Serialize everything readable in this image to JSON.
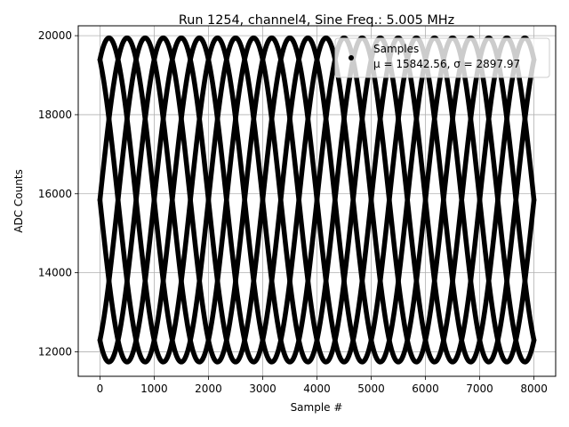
{
  "chart_data": {
    "type": "scatter",
    "title": "Run 1254, channel4, Sine Freq.: 5.005 MHz",
    "xlabel": "Sample #",
    "ylabel": "ADC Counts",
    "xlim": [
      -400,
      8400
    ],
    "ylim": [
      11380,
      20250
    ],
    "xticks": [
      0,
      1000,
      2000,
      3000,
      4000,
      5000,
      6000,
      7000,
      8000
    ],
    "xtick_labels": [
      "0",
      "1000",
      "2000",
      "3000",
      "4000",
      "5000",
      "6000",
      "7000",
      "8000"
    ],
    "yticks": [
      12000,
      14000,
      16000,
      18000,
      20000
    ],
    "ytick_labels": [
      "12000",
      "14000",
      "16000",
      "18000",
      "20000"
    ],
    "grid": true,
    "legend": {
      "placement": "upper-right",
      "entries": [
        {
          "label": "Samples",
          "detail": "μ = 15842.56, σ = 2897.97"
        }
      ]
    },
    "series": [
      {
        "name": "Samples",
        "color": "#000000",
        "marker": "dot",
        "model": "sine",
        "mean": 15842.56,
        "amplitude": 4100,
        "period_samples": 2000,
        "phase_offsets_samples": [
          0,
          333,
          667,
          1000,
          1333,
          1667
        ],
        "x_range": [
          0,
          8000
        ]
      }
    ]
  }
}
